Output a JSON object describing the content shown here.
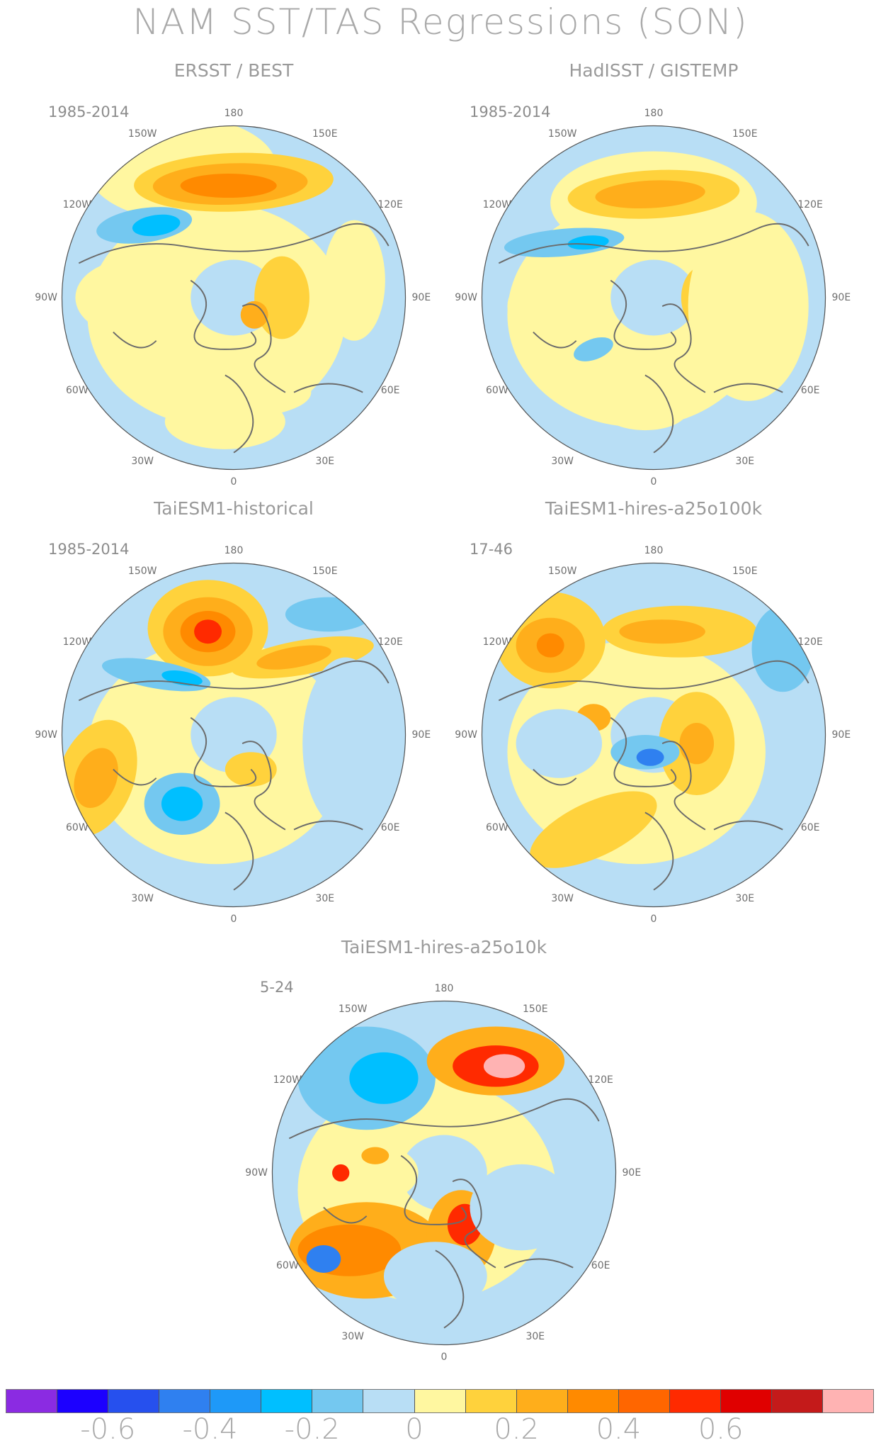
{
  "title": "NAM SST/TAS Regressions (SON)",
  "panels": [
    {
      "id": "ersst",
      "title": "ERSST / BEST",
      "period": "1985-2014"
    },
    {
      "id": "hadisst",
      "title": "HadISST / GISTEMP",
      "period": "1985-2014"
    },
    {
      "id": "historical",
      "title": "TaiESM1-historical",
      "period": "1985-2014"
    },
    {
      "id": "a25o100k",
      "title": "TaiESM1-hires-a25o100k",
      "period": "17-46"
    },
    {
      "id": "a25o10k",
      "title": "TaiESM1-hires-a25o10k",
      "period": "5-24"
    }
  ],
  "lon_labels": {
    "top": "180",
    "bottom": "0",
    "w150": "150W",
    "e150": "150E",
    "w120": "120W",
    "e120": "120E",
    "w90": "90W",
    "e90": "90E",
    "w60": "60W",
    "e60": "60E",
    "w30": "30W",
    "e30": "30E"
  },
  "colorbar": {
    "colors": [
      "#8b2be2",
      "#1c00ff",
      "#2650ee",
      "#2f80f0",
      "#1e99f8",
      "#00bfff",
      "#74c8f0",
      "#b8def5",
      "#fff7a0",
      "#ffd23c",
      "#ffae1b",
      "#ff8a00",
      "#ff6600",
      "#ff2a00",
      "#e00000",
      "#c41a1a",
      "#ffb3b3"
    ],
    "labels": [
      "-0.6",
      "-0.4",
      "-0.2",
      "0",
      "0.2",
      "0.4",
      "0.6"
    ]
  },
  "map_colors": {
    "ocean_neutral": "#b8def5",
    "land_neutral": "#fff7a0",
    "warm1": "#ffd23c",
    "warm2": "#ffae1b",
    "warm3": "#ff8a00",
    "warm4": "#ff2a00",
    "warm5": "#c41a1a",
    "warm6": "#ffb3b3",
    "cool1": "#74c8f0",
    "cool2": "#00bfff",
    "cool3": "#2f80f0",
    "cool4": "#1c00ff",
    "coast": "#6b6b6b"
  }
}
